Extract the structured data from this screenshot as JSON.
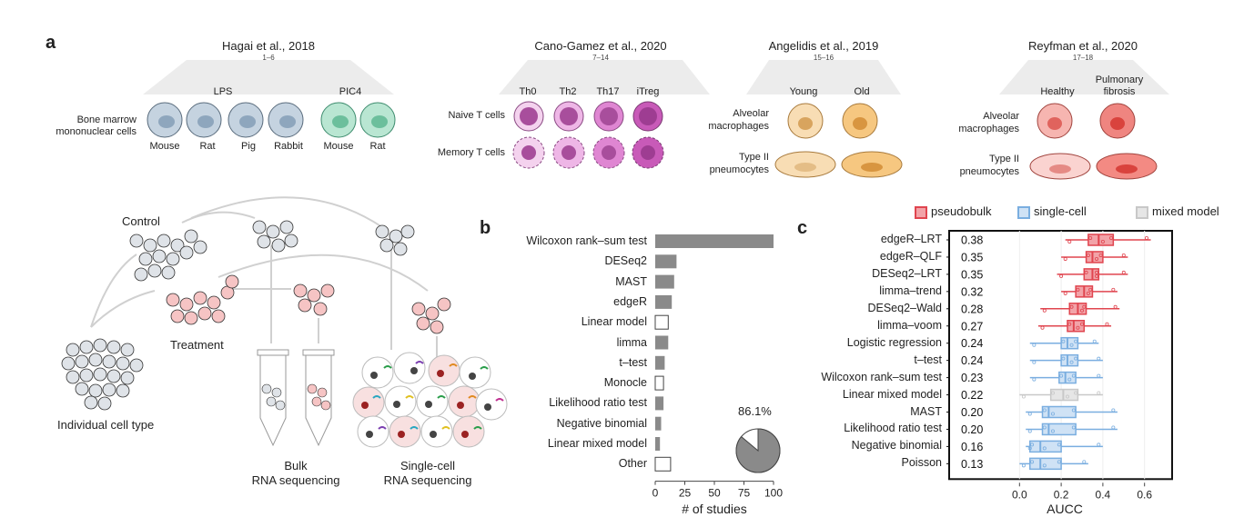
{
  "panel_a": {
    "letter": "a",
    "studies": [
      {
        "title": "Hagai et al., 2018",
        "ref": "1–6"
      },
      {
        "title": "Cano-Gamez et al., 2020",
        "ref": "7–14"
      },
      {
        "title": "Angelidis et al., 2019",
        "ref": "15–16"
      },
      {
        "title": "Reyfman et al., 2020",
        "ref": "17–18"
      }
    ],
    "hagai": {
      "row_label_1": "Bone marrow",
      "row_label_2": "mononuclear cells",
      "group_lps": "LPS",
      "group_pic4": "PIC4",
      "species": [
        "Mouse",
        "Rat",
        "Pig",
        "Rabbit",
        "Mouse",
        "Rat"
      ]
    },
    "cano": {
      "columns": [
        "Th0",
        "Th2",
        "Th17",
        "iTreg"
      ],
      "rows": [
        "Naive T cells",
        "Memory T cells"
      ]
    },
    "angelidis": {
      "columns": [
        "Young",
        "Old"
      ],
      "row1_a": "Alveolar",
      "row1_b": "macrophages",
      "row2_a": "Type II",
      "row2_b": "pneumocytes"
    },
    "reyfman": {
      "col1": "Healthy",
      "col2_a": "Pulmonary",
      "col2_b": "fibrosis",
      "row1_a": "Alveolar",
      "row1_b": "macrophages",
      "row2_a": "Type II",
      "row2_b": "pneumocytes"
    },
    "workflow": {
      "control": "Control",
      "treatment": "Treatment",
      "individual": "Individual cell type",
      "bulk_1": "Bulk",
      "bulk_2": "RNA sequencing",
      "sc_1": "Single-cell",
      "sc_2": "RNA sequencing"
    }
  },
  "panel_b": {
    "letter": "b"
  },
  "panel_c": {
    "letter": "c"
  },
  "colors": {
    "pseudobulk": "#e0454f",
    "single_cell": "#7aaee0",
    "mixed_model": "#c8c8c8",
    "bar_fill": "#8a8a8a"
  },
  "chart_data": [
    {
      "type": "bar",
      "orientation": "horizontal",
      "categories": [
        "Wilcoxon rank–sum test",
        "DESeq2",
        "MAST",
        "edgeR",
        "Linear model",
        "limma",
        "t–test",
        "Monocle",
        "Likelihood ratio test",
        "Negative binomial",
        "Linear mixed model",
        "Other"
      ],
      "values": [
        100,
        18,
        16,
        14,
        11,
        11,
        8,
        7,
        7,
        5,
        4,
        13
      ],
      "filled": [
        true,
        true,
        true,
        true,
        false,
        true,
        true,
        false,
        true,
        true,
        true,
        false
      ],
      "xlabel": "# of studies",
      "xlim": [
        0,
        100
      ],
      "xticks": [
        "0",
        "25",
        "50",
        "75",
        "100"
      ],
      "inset_pie": {
        "label": "86.1%",
        "value": 86.1
      }
    },
    {
      "type": "box",
      "orientation": "horizontal",
      "methods": [
        "edgeR–LRT",
        "edgeR–QLF",
        "DESeq2–LRT",
        "limma–trend",
        "DESeq2–Wald",
        "limma–voom",
        "Logistic regression",
        "t–test",
        "Wilcoxon rank–sum test",
        "Linear mixed model",
        "MAST",
        "Likelihood ratio test",
        "Negative binomial",
        "Poisson"
      ],
      "aucc": [
        "0.38",
        "0.35",
        "0.35",
        "0.32",
        "0.28",
        "0.27",
        "0.24",
        "0.24",
        "0.23",
        "0.22",
        "0.20",
        "0.20",
        "0.16",
        "0.13"
      ],
      "groups": [
        "pseudobulk",
        "pseudobulk",
        "pseudobulk",
        "pseudobulk",
        "pseudobulk",
        "pseudobulk",
        "single-cell",
        "single-cell",
        "single-cell",
        "mixed model",
        "single-cell",
        "single-cell",
        "single-cell",
        "single-cell"
      ],
      "boxes": [
        {
          "min": 0.22,
          "q1": 0.33,
          "median": 0.38,
          "q3": 0.45,
          "max": 0.63
        },
        {
          "min": 0.2,
          "q1": 0.32,
          "median": 0.35,
          "q3": 0.4,
          "max": 0.52
        },
        {
          "min": 0.18,
          "q1": 0.31,
          "median": 0.35,
          "q3": 0.38,
          "max": 0.52
        },
        {
          "min": 0.2,
          "q1": 0.27,
          "median": 0.31,
          "q3": 0.35,
          "max": 0.47
        },
        {
          "min": 0.1,
          "q1": 0.24,
          "median": 0.28,
          "q3": 0.32,
          "max": 0.48
        },
        {
          "min": 0.09,
          "q1": 0.23,
          "median": 0.26,
          "q3": 0.31,
          "max": 0.44
        },
        {
          "min": 0.05,
          "q1": 0.2,
          "median": 0.23,
          "q3": 0.28,
          "max": 0.38
        },
        {
          "min": 0.05,
          "q1": 0.2,
          "median": 0.23,
          "q3": 0.28,
          "max": 0.4
        },
        {
          "min": 0.05,
          "q1": 0.19,
          "median": 0.22,
          "q3": 0.27,
          "max": 0.4
        },
        {
          "min": 0.0,
          "q1": 0.15,
          "median": 0.21,
          "q3": 0.28,
          "max": 0.4
        },
        {
          "min": 0.03,
          "q1": 0.11,
          "median": 0.14,
          "q3": 0.27,
          "max": 0.47
        },
        {
          "min": 0.03,
          "q1": 0.11,
          "median": 0.14,
          "q3": 0.27,
          "max": 0.47
        },
        {
          "min": 0.03,
          "q1": 0.05,
          "median": 0.1,
          "q3": 0.2,
          "max": 0.4
        },
        {
          "min": 0.0,
          "q1": 0.05,
          "median": 0.1,
          "q3": 0.2,
          "max": 0.33
        }
      ],
      "xlabel": "AUCC",
      "xlim": [
        -0.08,
        0.68
      ],
      "xticks": [
        "0.0",
        "0.2",
        "0.4",
        "0.6"
      ],
      "legend": [
        "pseudobulk",
        "single-cell",
        "mixed model"
      ],
      "legend_position": "top-right"
    }
  ]
}
